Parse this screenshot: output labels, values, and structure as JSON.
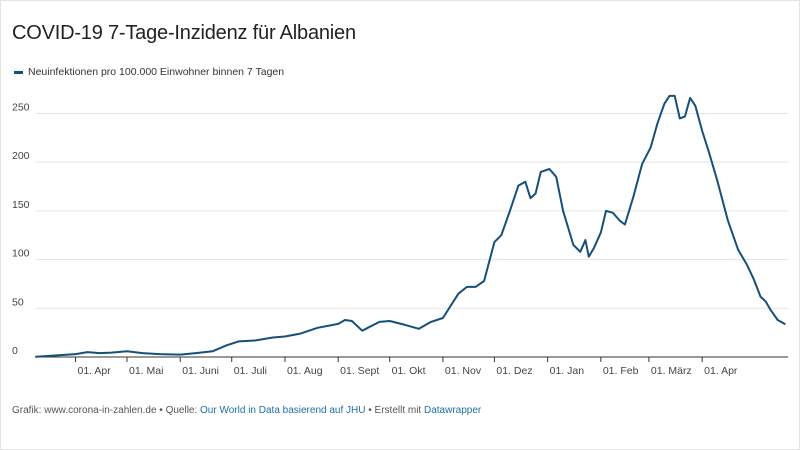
{
  "title": "COVID-19 7-Tage-Inzidenz für Albanien",
  "legend_label": "Neuinfektionen pro 100.000 Einwohner binnen 7 Tagen",
  "footer": {
    "prefix": "Grafik: www.corona-in-zahlen.de • Quelle: ",
    "source_link": "Our World in Data basierend auf JHU",
    "middle": " • Erstellt mit ",
    "tool_link": "Datawrapper"
  },
  "colors": {
    "line": "#15507a",
    "grid": "#e3e3e3",
    "axis_text": "#444444",
    "link": "#1d6fa5"
  },
  "chart_data": {
    "type": "line",
    "title": "COVID-19 7-Tage-Inzidenz für Albanien",
    "xlabel": "",
    "ylabel": "",
    "ylim": [
      0,
      270
    ],
    "yticks": [
      0,
      50,
      100,
      150,
      200,
      250
    ],
    "grid": true,
    "legend_position": "top-left",
    "x_ticks": [
      {
        "date": "2020-04-01",
        "label": "01. Apr"
      },
      {
        "date": "2020-05-01",
        "label": "01. Mai"
      },
      {
        "date": "2020-06-01",
        "label": "01. Juni"
      },
      {
        "date": "2020-07-01",
        "label": "01. Juli"
      },
      {
        "date": "2020-08-01",
        "label": "01. Aug"
      },
      {
        "date": "2020-09-01",
        "label": "01. Sept"
      },
      {
        "date": "2020-10-01",
        "label": "01. Okt"
      },
      {
        "date": "2020-11-01",
        "label": "01. Nov"
      },
      {
        "date": "2020-12-01",
        "label": "01. Dez"
      },
      {
        "date": "2021-01-01",
        "label": "01. Jan"
      },
      {
        "date": "2021-02-01",
        "label": "01. Feb"
      },
      {
        "date": "2021-03-01",
        "label": "01. März"
      },
      {
        "date": "2021-04-01",
        "label": "01. Apr"
      }
    ],
    "series": [
      {
        "name": "Neuinfektionen pro 100.000 Einwohner binnen 7 Tagen",
        "points": [
          [
            "2020-03-09",
            0.2
          ],
          [
            "2020-03-20",
            1.5
          ],
          [
            "2020-04-01",
            3
          ],
          [
            "2020-04-08",
            5
          ],
          [
            "2020-04-15",
            4
          ],
          [
            "2020-04-22",
            4.5
          ],
          [
            "2020-05-01",
            6
          ],
          [
            "2020-05-10",
            4
          ],
          [
            "2020-05-20",
            3
          ],
          [
            "2020-06-01",
            2.5
          ],
          [
            "2020-06-10",
            4
          ],
          [
            "2020-06-20",
            6
          ],
          [
            "2020-06-28",
            12
          ],
          [
            "2020-07-05",
            16
          ],
          [
            "2020-07-15",
            17
          ],
          [
            "2020-07-25",
            20
          ],
          [
            "2020-08-01",
            21
          ],
          [
            "2020-08-10",
            24
          ],
          [
            "2020-08-20",
            30
          ],
          [
            "2020-09-01",
            34
          ],
          [
            "2020-09-05",
            38
          ],
          [
            "2020-09-09",
            37
          ],
          [
            "2020-09-15",
            27
          ],
          [
            "2020-09-25",
            36
          ],
          [
            "2020-10-01",
            37
          ],
          [
            "2020-10-10",
            33
          ],
          [
            "2020-10-18",
            29
          ],
          [
            "2020-10-25",
            36
          ],
          [
            "2020-11-01",
            40
          ],
          [
            "2020-11-10",
            65
          ],
          [
            "2020-11-15",
            72
          ],
          [
            "2020-11-20",
            72
          ],
          [
            "2020-11-25",
            78
          ],
          [
            "2020-12-01",
            118
          ],
          [
            "2020-12-05",
            125
          ],
          [
            "2020-12-10",
            150
          ],
          [
            "2020-12-15",
            176
          ],
          [
            "2020-12-19",
            180
          ],
          [
            "2020-12-22",
            163
          ],
          [
            "2020-12-25",
            168
          ],
          [
            "2020-12-28",
            190
          ],
          [
            "2021-01-02",
            193
          ],
          [
            "2021-01-06",
            185
          ],
          [
            "2021-01-10",
            150
          ],
          [
            "2021-01-16",
            115
          ],
          [
            "2021-01-20",
            108
          ],
          [
            "2021-01-23",
            120
          ],
          [
            "2021-01-25",
            103
          ],
          [
            "2021-01-28",
            112
          ],
          [
            "2021-02-01",
            128
          ],
          [
            "2021-02-04",
            150
          ],
          [
            "2021-02-08",
            148
          ],
          [
            "2021-02-12",
            140
          ],
          [
            "2021-02-15",
            136
          ],
          [
            "2021-02-20",
            165
          ],
          [
            "2021-02-25",
            198
          ],
          [
            "2021-03-02",
            215
          ],
          [
            "2021-03-06",
            240
          ],
          [
            "2021-03-10",
            260
          ],
          [
            "2021-03-13",
            268
          ],
          [
            "2021-03-16",
            268
          ],
          [
            "2021-03-19",
            245
          ],
          [
            "2021-03-22",
            247
          ],
          [
            "2021-03-25",
            266
          ],
          [
            "2021-03-28",
            258
          ],
          [
            "2021-04-01",
            232
          ],
          [
            "2021-04-05",
            210
          ],
          [
            "2021-04-10",
            180
          ],
          [
            "2021-04-16",
            140
          ],
          [
            "2021-04-22",
            110
          ],
          [
            "2021-04-27",
            95
          ],
          [
            "2021-05-01",
            80
          ],
          [
            "2021-05-05",
            62
          ],
          [
            "2021-05-08",
            57
          ],
          [
            "2021-05-11",
            48
          ],
          [
            "2021-05-15",
            38
          ],
          [
            "2021-05-19",
            34
          ]
        ]
      }
    ]
  }
}
